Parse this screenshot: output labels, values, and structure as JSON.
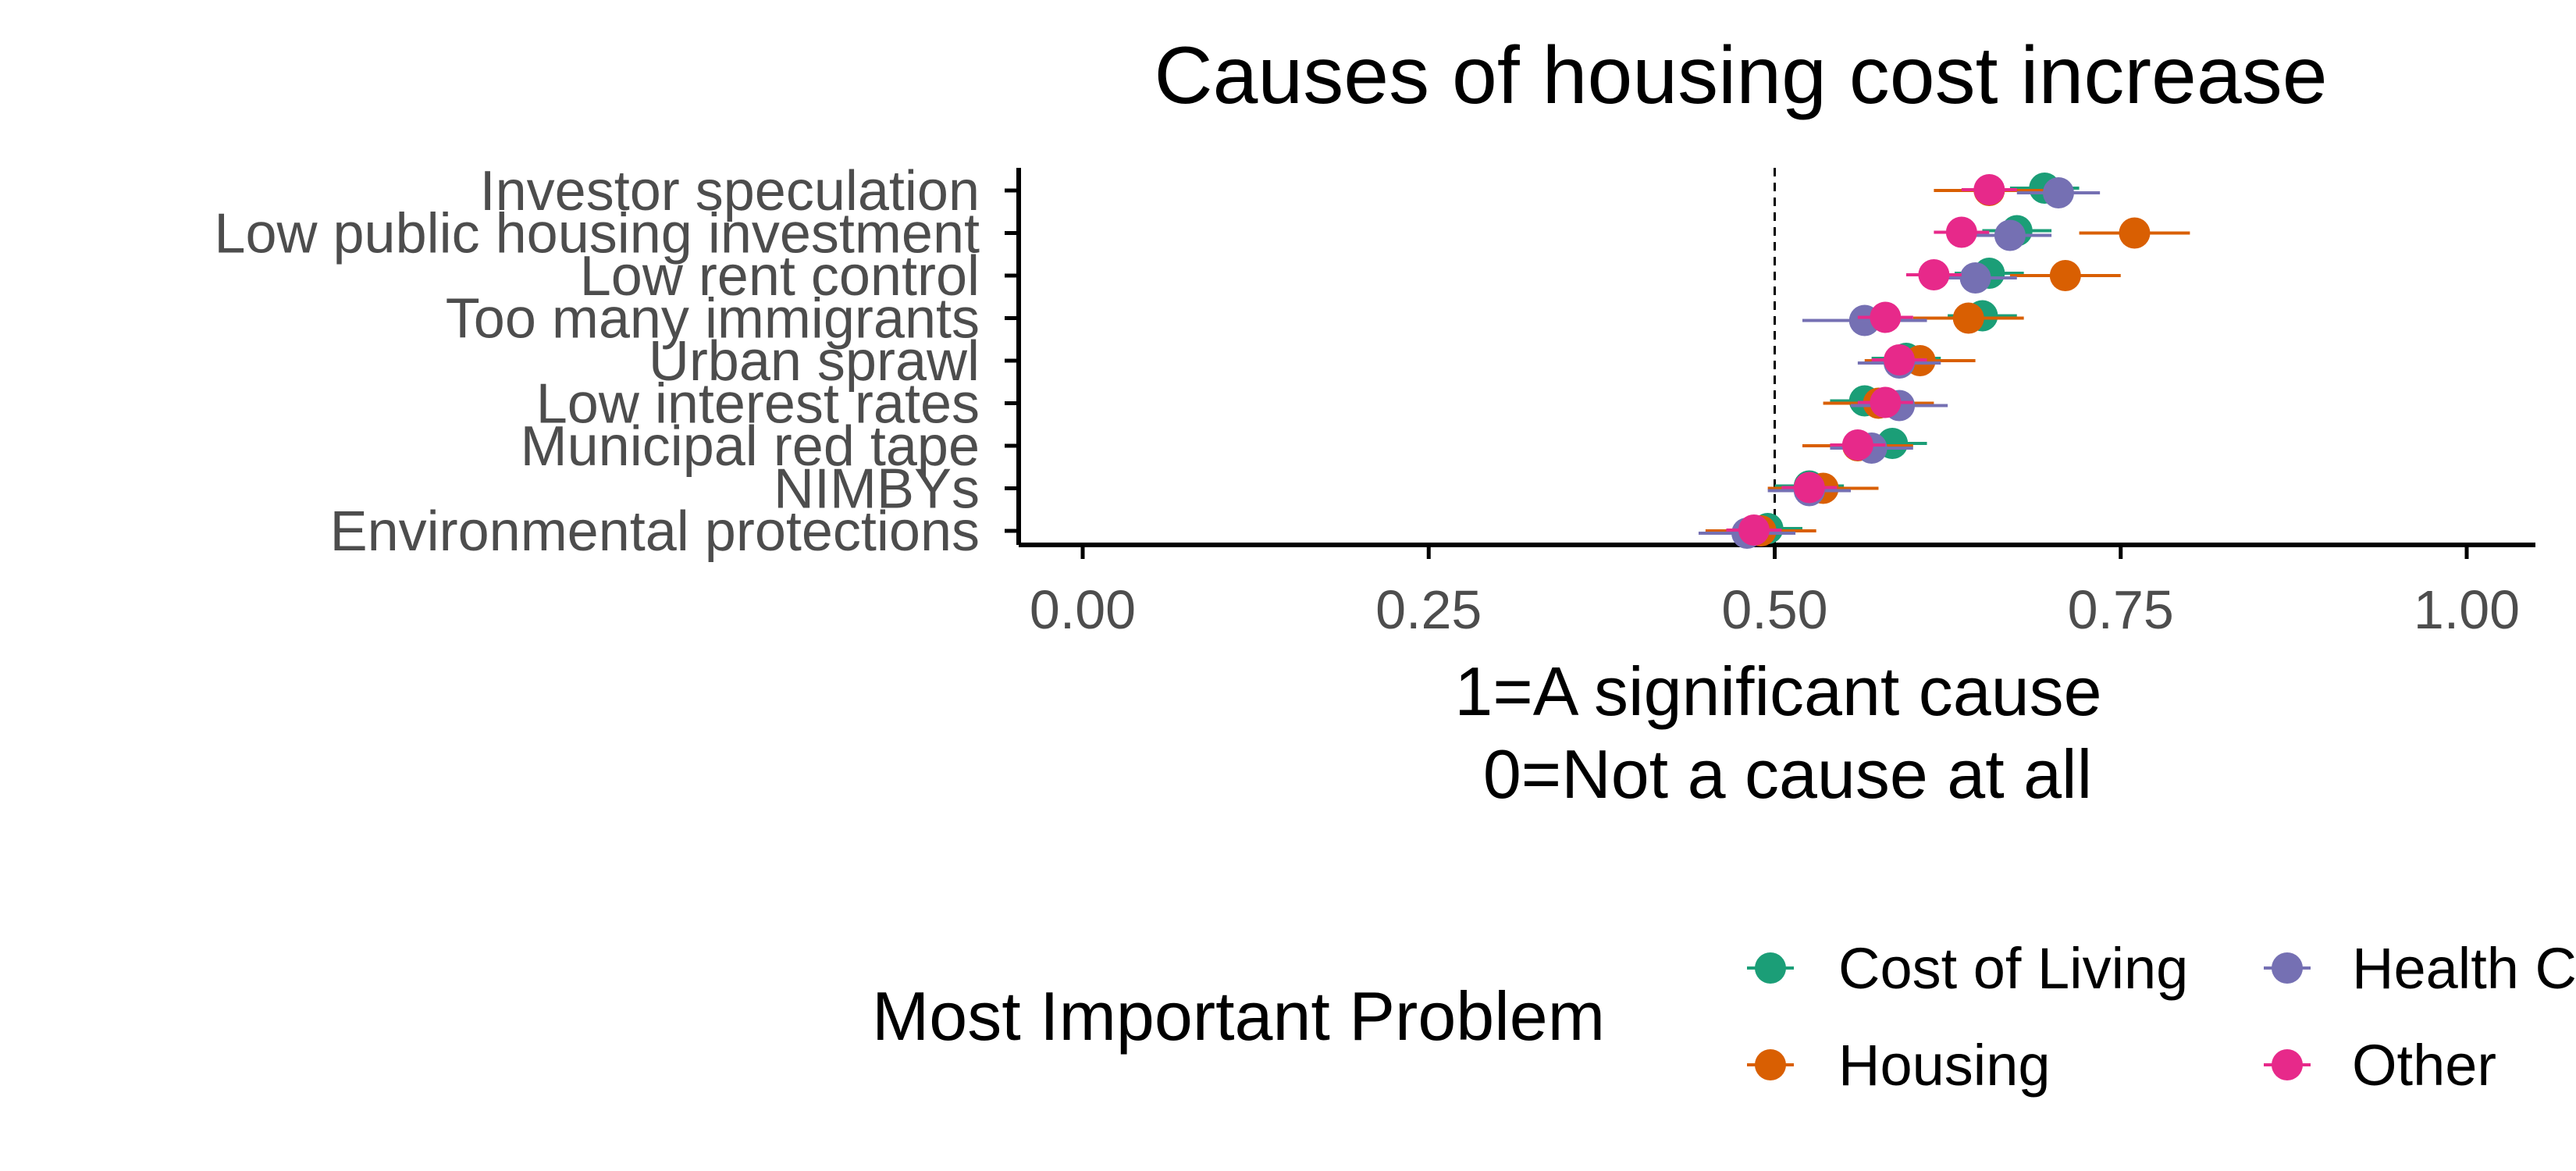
{
  "chart_data": {
    "type": "scatter",
    "title": "Causes of housing cost increase",
    "xlabel": [
      "1=A significant cause",
      "0=Not a cause at all"
    ],
    "ylabel": "",
    "xlim": [
      0,
      1
    ],
    "xticks": [
      "0.00",
      "0.25",
      "0.50",
      "0.75",
      "1.00"
    ],
    "reference_line": 0.5,
    "grid": false,
    "categories": [
      "Investor speculation",
      "Low public housing investment",
      "Low rent control",
      "Too many immigrants",
      "Urban sprawl",
      "Low interest rates",
      "Municipal red tape",
      "NIMBYs",
      "Environmental protections"
    ],
    "legend": {
      "title": "Most Important Problem",
      "placement": "bottom",
      "entries": [
        "Cost of Living",
        "Health C",
        "Housing",
        "Other"
      ]
    },
    "series": [
      {
        "name": "Cost of Living",
        "color": "#1B9E77",
        "values": [
          0.695,
          0.675,
          0.655,
          0.65,
          0.595,
          0.565,
          0.585,
          0.525,
          0.495
        ],
        "ci": [
          [
            0.67,
            0.72
          ],
          [
            0.65,
            0.7
          ],
          [
            0.63,
            0.68
          ],
          [
            0.625,
            0.675
          ],
          [
            0.57,
            0.62
          ],
          [
            0.54,
            0.59
          ],
          [
            0.56,
            0.61
          ],
          [
            0.5,
            0.55
          ],
          [
            0.47,
            0.52
          ]
        ]
      },
      {
        "name": "Housing",
        "color": "#D95F02",
        "values": [
          0.655,
          0.76,
          0.71,
          0.64,
          0.605,
          0.575,
          0.56,
          0.535,
          0.49
        ],
        "ci": [
          [
            0.615,
            0.695
          ],
          [
            0.72,
            0.8
          ],
          [
            0.67,
            0.75
          ],
          [
            0.6,
            0.68
          ],
          [
            0.565,
            0.645
          ],
          [
            0.535,
            0.615
          ],
          [
            0.52,
            0.6
          ],
          [
            0.495,
            0.575
          ],
          [
            0.45,
            0.53
          ]
        ]
      },
      {
        "name": "Health C",
        "color": "#7570B3",
        "values": [
          0.705,
          0.67,
          0.645,
          0.565,
          0.59,
          0.59,
          0.57,
          0.525,
          0.48
        ],
        "ci": [
          [
            0.675,
            0.735
          ],
          [
            0.64,
            0.7
          ],
          [
            0.615,
            0.675
          ],
          [
            0.52,
            0.61
          ],
          [
            0.56,
            0.62
          ],
          [
            0.555,
            0.625
          ],
          [
            0.54,
            0.6
          ],
          [
            0.495,
            0.555
          ],
          [
            0.445,
            0.515
          ]
        ]
      },
      {
        "name": "Other",
        "color": "#E7298A",
        "values": [
          0.655,
          0.635,
          0.615,
          0.58,
          0.59,
          0.58,
          0.56,
          0.525,
          0.485
        ],
        "ci": [
          [
            0.635,
            0.675
          ],
          [
            0.615,
            0.655
          ],
          [
            0.595,
            0.635
          ],
          [
            0.56,
            0.6
          ],
          [
            0.57,
            0.61
          ],
          [
            0.56,
            0.6
          ],
          [
            0.54,
            0.58
          ],
          [
            0.505,
            0.545
          ],
          [
            0.465,
            0.505
          ]
        ]
      }
    ]
  }
}
